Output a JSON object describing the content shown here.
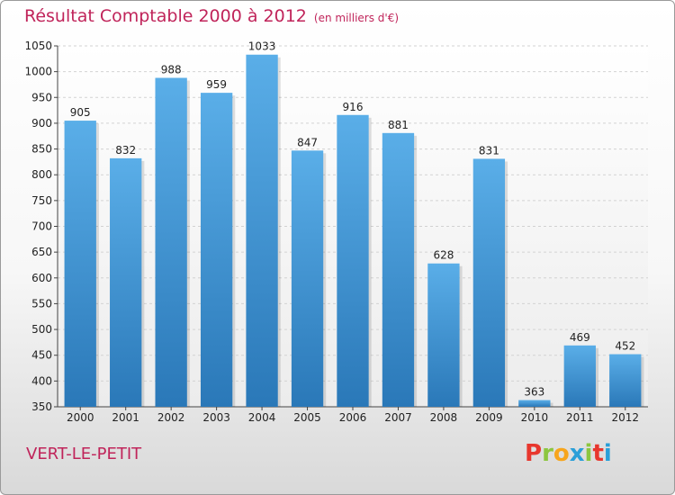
{
  "header": {
    "title": "Résultat Comptable 2000 à 2012",
    "subtitle": "(en milliers d'€)"
  },
  "footer": {
    "commune": "VERT-LE-PETIT",
    "logo": "Proxiti"
  },
  "colors": {
    "accent": "#c0245a",
    "bar_top": "#5aaee8",
    "bar_bottom": "#2a78b8",
    "logo_letters": [
      "#e8372e",
      "#8cc63f",
      "#f7a51c",
      "#2a9fd8",
      "#8cc63f",
      "#e8372e",
      "#2a9fd8"
    ]
  },
  "chart_data": {
    "type": "bar",
    "title": "Résultat Comptable 2000 à 2012",
    "subtitle": "(en milliers d'€)",
    "xlabel": "",
    "ylabel": "",
    "categories": [
      "2000",
      "2001",
      "2002",
      "2003",
      "2004",
      "2005",
      "2006",
      "2007",
      "2008",
      "2009",
      "2010",
      "2011",
      "2012"
    ],
    "values": [
      905,
      832,
      988,
      959,
      1033,
      847,
      916,
      881,
      628,
      831,
      363,
      469,
      452
    ],
    "ylim": [
      350,
      1050
    ],
    "yticks": [
      350,
      400,
      450,
      500,
      550,
      600,
      650,
      700,
      750,
      800,
      850,
      900,
      950,
      1000,
      1050
    ],
    "grid": true
  }
}
